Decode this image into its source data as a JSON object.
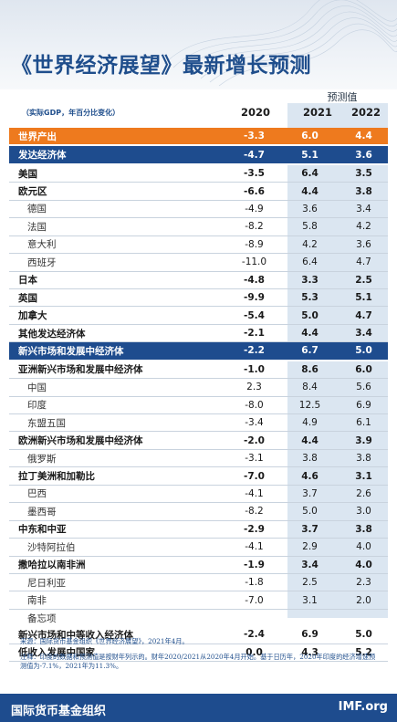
{
  "title": "《世界经济展望》最新增长预测",
  "subtitle": "（实际GDP，年百分比变化）",
  "forecast_label": "预测值",
  "columns": [
    "2020",
    "2021",
    "2022"
  ],
  "rows": [
    {
      "name": "世界产出",
      "v": [
        "-3.3",
        "6.0",
        "4.4"
      ],
      "style": "hl-orange"
    },
    {
      "name": "发达经济体",
      "v": [
        "-4.7",
        "5.1",
        "3.6"
      ],
      "style": "hl-blue"
    },
    {
      "name": "美国",
      "v": [
        "-3.5",
        "6.4",
        "3.5"
      ],
      "style": "bold"
    },
    {
      "name": "欧元区",
      "v": [
        "-6.6",
        "4.4",
        "3.8"
      ],
      "style": "bold"
    },
    {
      "name": "德国",
      "v": [
        "-4.9",
        "3.6",
        "3.4"
      ],
      "style": "sub"
    },
    {
      "name": "法国",
      "v": [
        "-8.2",
        "5.8",
        "4.2"
      ],
      "style": "sub"
    },
    {
      "name": "意大利",
      "v": [
        "-8.9",
        "4.2",
        "3.6"
      ],
      "style": "sub"
    },
    {
      "name": "西班牙",
      "v": [
        "-11.0",
        "6.4",
        "4.7"
      ],
      "style": "sub"
    },
    {
      "name": "日本",
      "v": [
        "-4.8",
        "3.3",
        "2.5"
      ],
      "style": "bold"
    },
    {
      "name": "英国",
      "v": [
        "-9.9",
        "5.3",
        "5.1"
      ],
      "style": "bold"
    },
    {
      "name": "加拿大",
      "v": [
        "-5.4",
        "5.0",
        "4.7"
      ],
      "style": "bold"
    },
    {
      "name": "其他发达经济体",
      "v": [
        "-2.1",
        "4.4",
        "3.4"
      ],
      "style": "bold"
    },
    {
      "name": "新兴市场和发展中经济体",
      "v": [
        "-2.2",
        "6.7",
        "5.0"
      ],
      "style": "hl-blue"
    },
    {
      "name": "亚洲新兴市场和发展中经济体",
      "v": [
        "-1.0",
        "8.6",
        "6.0"
      ],
      "style": "bold"
    },
    {
      "name": "中国",
      "v": [
        "2.3",
        "8.4",
        "5.6"
      ],
      "style": "sub"
    },
    {
      "name": "印度",
      "v": [
        "-8.0",
        "12.5",
        "6.9"
      ],
      "style": "sub"
    },
    {
      "name": "东盟五国",
      "v": [
        "-3.4",
        "4.9",
        "6.1"
      ],
      "style": "sub"
    },
    {
      "name": "欧洲新兴市场和发展中经济体",
      "v": [
        "-2.0",
        "4.4",
        "3.9"
      ],
      "style": "bold"
    },
    {
      "name": "俄罗斯",
      "v": [
        "-3.1",
        "3.8",
        "3.8"
      ],
      "style": "sub"
    },
    {
      "name": "拉丁美洲和加勒比",
      "v": [
        "-7.0",
        "4.6",
        "3.1"
      ],
      "style": "bold"
    },
    {
      "name": "巴西",
      "v": [
        "-4.1",
        "3.7",
        "2.6"
      ],
      "style": "sub"
    },
    {
      "name": "墨西哥",
      "v": [
        "-8.2",
        "5.0",
        "3.0"
      ],
      "style": "sub"
    },
    {
      "name": "中东和中亚",
      "v": [
        "-2.9",
        "3.7",
        "3.8"
      ],
      "style": "bold"
    },
    {
      "name": "沙特阿拉伯",
      "v": [
        "-4.1",
        "2.9",
        "4.0"
      ],
      "style": "sub"
    },
    {
      "name": "撒哈拉以南非洲",
      "v": [
        "-1.9",
        "3.4",
        "4.0"
      ],
      "style": "bold"
    },
    {
      "name": "尼日利亚",
      "v": [
        "-1.8",
        "2.5",
        "2.3"
      ],
      "style": "sub"
    },
    {
      "name": "南非",
      "v": [
        "-7.0",
        "3.1",
        "2.0"
      ],
      "style": "sub"
    },
    {
      "name": "备忘项",
      "v": [
        "",
        "",
        ""
      ],
      "style": "sub memo"
    },
    {
      "name": "新兴市场和中等收入经济体",
      "v": [
        "-2.4",
        "6.9",
        "5.0"
      ],
      "style": "bold"
    },
    {
      "name": "低收入发展中国家",
      "v": [
        "0.0",
        "4.3",
        "5.2"
      ],
      "style": "bold"
    }
  ],
  "notes": {
    "source": "来源：国际货币基金组织《世界经济展望》，2021年4月。",
    "note": "注释：印度的数据和预测值是按财年列示的。财年2020/2021从2020年4月开始。基于日历年，2020年印度的经济增速预测值为-7.1%，2021年为11.3%。"
  },
  "footer": {
    "org": "国际货币基金组织",
    "site": "IMF.org"
  },
  "chart_data": {
    "type": "table",
    "title": "《世界经济展望》最新增长预测",
    "subtitle": "（实际GDP，年百分比变化）",
    "columns": [
      "2020",
      "2021",
      "2022"
    ],
    "forecast_columns": [
      "2021",
      "2022"
    ]
  },
  "colors": {
    "orange": "#ee7a1e",
    "blue": "#1e4c8e",
    "band": "#dbe6f1"
  }
}
